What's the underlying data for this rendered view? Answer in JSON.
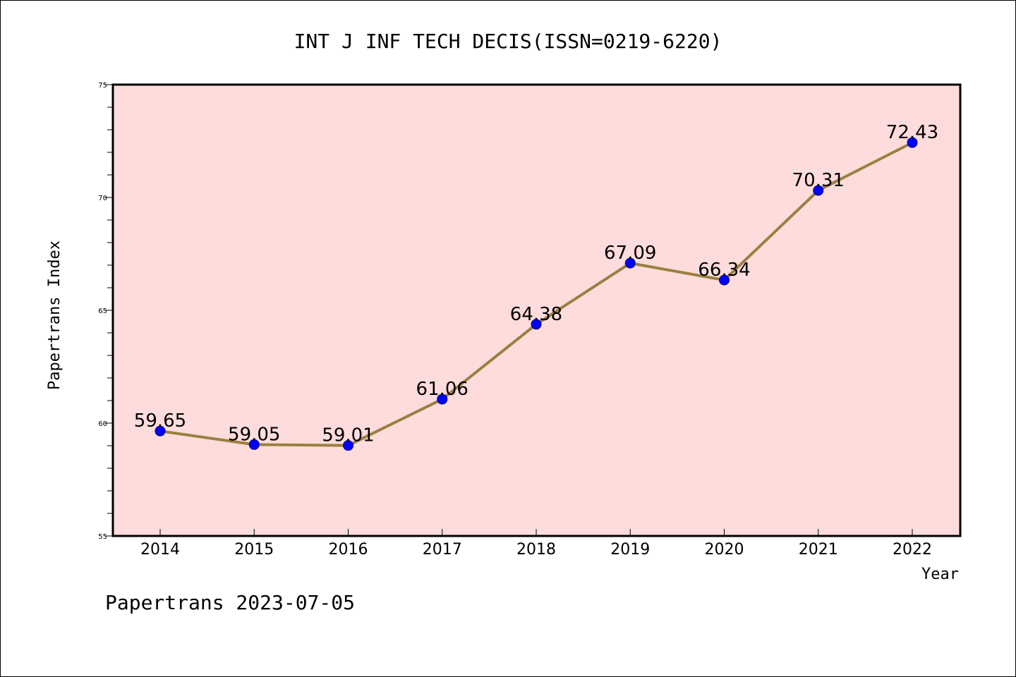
{
  "chart_data": {
    "type": "line",
    "title": "INT J INF TECH DECIS(ISSN=0219-6220)",
    "xlabel": "Year",
    "ylabel": "Papertrans Index",
    "footer": "Papertrans 2023-07-05",
    "categories": [
      "2014",
      "2015",
      "2016",
      "2017",
      "2018",
      "2019",
      "2020",
      "2021",
      "2022"
    ],
    "values": [
      59.65,
      59.05,
      59.01,
      61.06,
      64.38,
      67.09,
      66.34,
      70.31,
      72.43
    ],
    "data_labels": [
      "59.65",
      "59.05",
      "59.01",
      "61.06",
      "64.38",
      "67.09",
      "66.34",
      "70.31",
      "72.43"
    ],
    "ylim": [
      55,
      75
    ],
    "yticks": [
      55,
      60,
      65,
      70,
      75
    ],
    "yminor_step": 1,
    "grid": false,
    "colors": {
      "plot_background": "#ffdcdc",
      "line": "#9a8040",
      "marker": "#0000ff",
      "axis": "#000000"
    }
  }
}
